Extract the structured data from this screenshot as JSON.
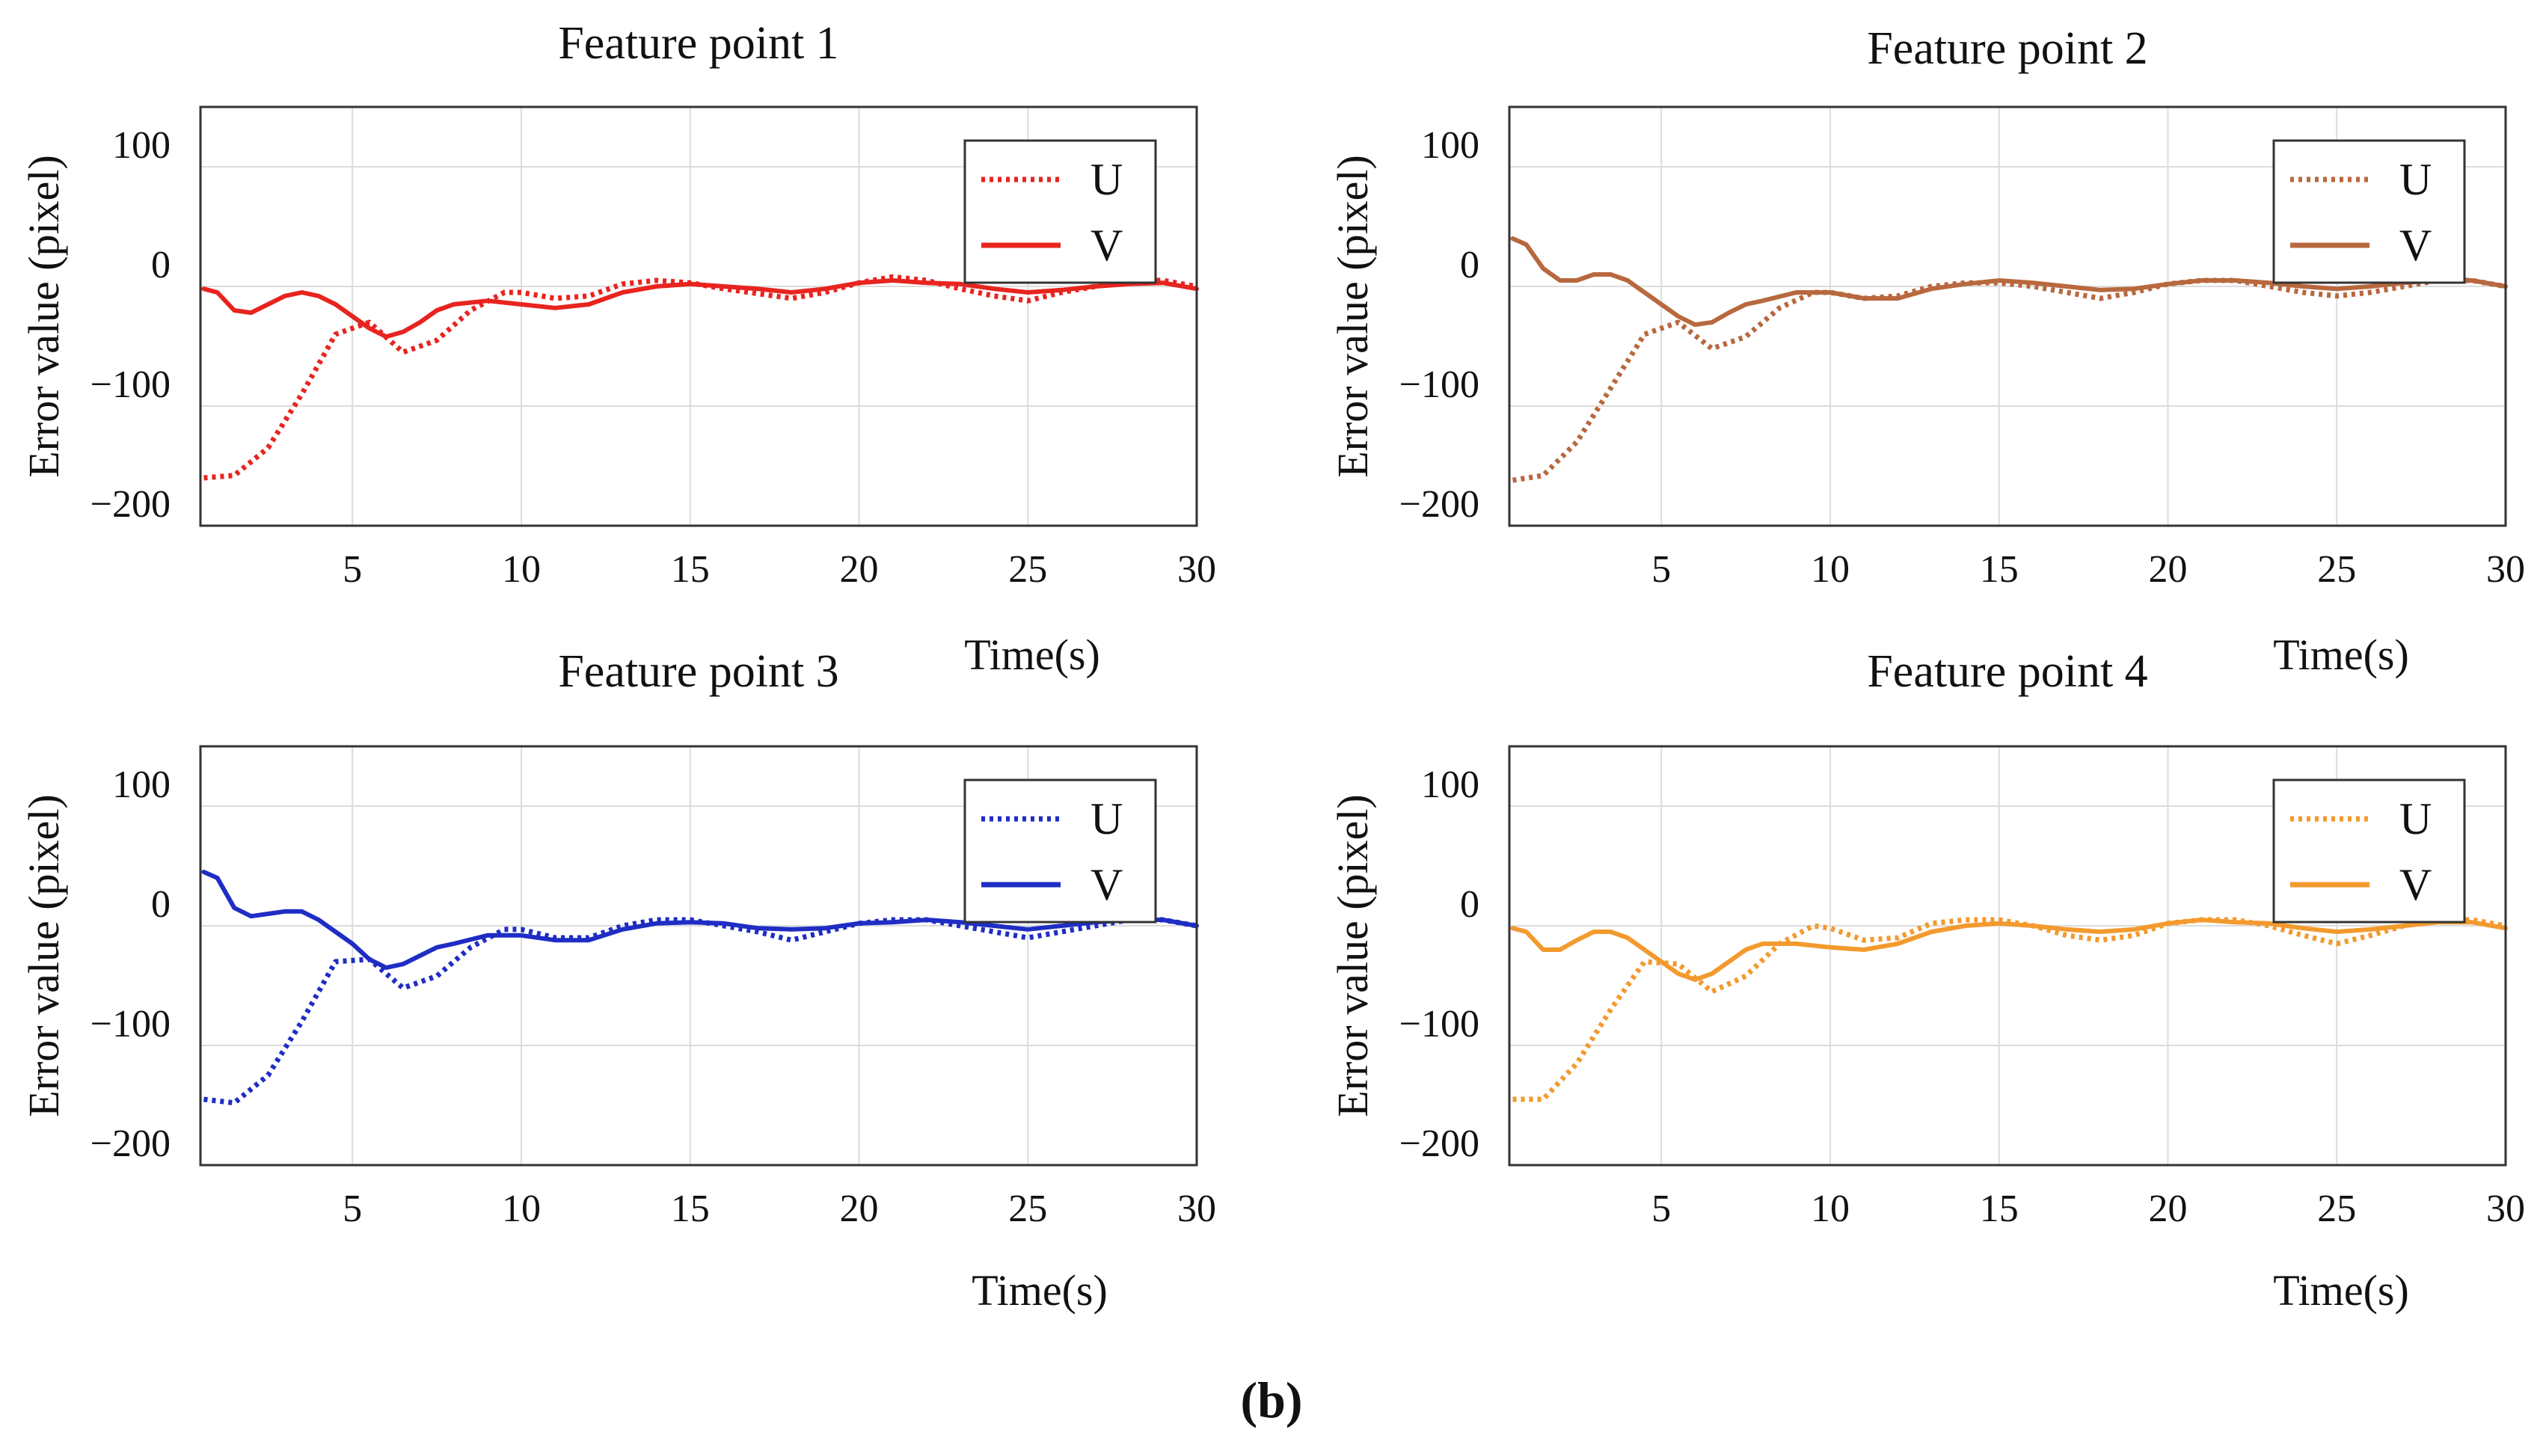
{
  "figure": {
    "caption": "(b)"
  },
  "chart_data": [
    {
      "type": "line",
      "title": "Feature point 1",
      "xlabel": "Time(s)",
      "ylabel": "Error value (pixel)",
      "xlim": [
        0.5,
        30
      ],
      "ylim": [
        -200,
        150
      ],
      "xticks": [
        5,
        10,
        15,
        20,
        25,
        30
      ],
      "yticks": [
        100,
        0,
        -100,
        -200
      ],
      "ytick_labels": [
        "100",
        "0",
        "−100",
        "−200"
      ],
      "grid": true,
      "color": "#e8241f",
      "legend_position": "top-right",
      "series": [
        {
          "name": "U",
          "style": "dotted",
          "x": [
            0.6,
            1.5,
            2.5,
            3.5,
            4.5,
            5.5,
            6.5,
            7.5,
            8.5,
            9.5,
            10,
            11,
            12,
            13,
            14,
            15,
            16,
            17,
            18,
            19,
            20,
            21,
            22,
            23,
            24,
            25,
            26,
            27,
            28,
            29,
            30
          ],
          "y": [
            -160,
            -158,
            -135,
            -90,
            -40,
            -30,
            -55,
            -45,
            -20,
            -5,
            -5,
            -10,
            -8,
            2,
            5,
            3,
            -2,
            -6,
            -10,
            -5,
            3,
            8,
            5,
            -2,
            -8,
            -12,
            -5,
            0,
            5,
            5,
            0
          ]
        },
        {
          "name": "V",
          "style": "solid",
          "x": [
            0.6,
            1,
            1.5,
            2,
            2.5,
            3,
            3.5,
            4,
            4.5,
            5,
            5.5,
            6,
            6.5,
            7,
            7.5,
            8,
            9,
            10,
            11,
            12,
            13,
            14,
            15,
            16,
            17,
            18,
            19,
            20,
            21,
            22,
            23,
            24,
            25,
            26,
            27,
            28,
            29,
            30
          ],
          "y": [
            -2,
            -5,
            -20,
            -22,
            -15,
            -8,
            -5,
            -8,
            -15,
            -25,
            -35,
            -42,
            -38,
            -30,
            -20,
            -15,
            -12,
            -15,
            -18,
            -15,
            -5,
            0,
            2,
            0,
            -2,
            -5,
            -2,
            3,
            5,
            3,
            2,
            -2,
            -5,
            -3,
            0,
            2,
            3,
            -2
          ]
        }
      ]
    },
    {
      "type": "line",
      "title": "Feature point 2",
      "xlabel": "Time(s)",
      "ylabel": "Error value (pixel)",
      "xlim": [
        0.5,
        30
      ],
      "ylim": [
        -200,
        150
      ],
      "xticks": [
        5,
        10,
        15,
        20,
        25,
        30
      ],
      "yticks": [
        100,
        0,
        -100,
        -200
      ],
      "ytick_labels": [
        "100",
        "0",
        "−100",
        "−200"
      ],
      "grid": true,
      "color": "#b8683e",
      "legend_position": "top-right",
      "series": [
        {
          "name": "U",
          "style": "dotted",
          "x": [
            0.6,
            1.5,
            2.5,
            3.5,
            4.5,
            5.5,
            6.5,
            7.5,
            8.5,
            9.5,
            10,
            11,
            12,
            13,
            14,
            15,
            16,
            17,
            18,
            19,
            20,
            21,
            22,
            23,
            24,
            25,
            26,
            27,
            28,
            29,
            30
          ],
          "y": [
            -162,
            -158,
            -130,
            -85,
            -40,
            -30,
            -52,
            -42,
            -18,
            -5,
            -5,
            -10,
            -8,
            0,
            3,
            3,
            0,
            -5,
            -10,
            -5,
            2,
            5,
            5,
            0,
            -5,
            -8,
            -5,
            0,
            5,
            5,
            0
          ]
        },
        {
          "name": "V",
          "style": "solid",
          "x": [
            0.6,
            1,
            1.5,
            2,
            2.5,
            3,
            3.5,
            4,
            4.5,
            5,
            5.5,
            6,
            6.5,
            7,
            7.5,
            8,
            9,
            10,
            11,
            12,
            13,
            14,
            15,
            16,
            17,
            18,
            19,
            20,
            21,
            22,
            23,
            24,
            25,
            26,
            27,
            28,
            29,
            30
          ],
          "y": [
            40,
            35,
            15,
            5,
            5,
            10,
            10,
            5,
            -5,
            -15,
            -25,
            -32,
            -30,
            -22,
            -15,
            -12,
            -5,
            -5,
            -10,
            -10,
            -2,
            2,
            5,
            3,
            0,
            -3,
            -2,
            2,
            5,
            5,
            3,
            0,
            -2,
            0,
            3,
            5,
            5,
            0
          ]
        }
      ]
    },
    {
      "type": "line",
      "title": "Feature point 3",
      "xlabel": "Time(s)",
      "ylabel": "Error value (pixel)",
      "xlim": [
        0.5,
        30
      ],
      "ylim": [
        -200,
        150
      ],
      "xticks": [
        5,
        10,
        15,
        20,
        25,
        30
      ],
      "yticks": [
        100,
        0,
        -100,
        -200
      ],
      "ytick_labels": [
        "100",
        "0",
        "−100",
        "−200"
      ],
      "grid": true,
      "color": "#1f2dc4",
      "legend_position": "top-right",
      "series": [
        {
          "name": "U",
          "style": "dotted",
          "x": [
            0.6,
            1.5,
            2.5,
            3.5,
            4.5,
            5.5,
            6.5,
            7.5,
            8.5,
            9.5,
            10,
            11,
            12,
            13,
            14,
            15,
            16,
            17,
            18,
            19,
            20,
            21,
            22,
            23,
            24,
            25,
            26,
            27,
            28,
            29,
            30
          ],
          "y": [
            -145,
            -148,
            -125,
            -80,
            -30,
            -28,
            -52,
            -42,
            -18,
            -3,
            -3,
            -10,
            -10,
            0,
            5,
            5,
            0,
            -5,
            -12,
            -5,
            2,
            5,
            5,
            0,
            -5,
            -10,
            -5,
            0,
            5,
            5,
            0
          ]
        },
        {
          "name": "V",
          "style": "solid",
          "x": [
            0.6,
            1,
            1.5,
            2,
            2.5,
            3,
            3.5,
            4,
            4.5,
            5,
            5.5,
            6,
            6.5,
            7,
            7.5,
            8,
            9,
            10,
            11,
            12,
            13,
            14,
            15,
            16,
            17,
            18,
            19,
            20,
            21,
            22,
            23,
            24,
            25,
            26,
            27,
            28,
            29,
            30
          ],
          "y": [
            45,
            40,
            15,
            8,
            10,
            12,
            12,
            5,
            -5,
            -15,
            -28,
            -35,
            -32,
            -25,
            -18,
            -15,
            -8,
            -8,
            -12,
            -12,
            -3,
            2,
            3,
            2,
            -2,
            -3,
            -2,
            2,
            3,
            5,
            3,
            0,
            -3,
            0,
            3,
            5,
            5,
            0
          ]
        }
      ]
    },
    {
      "type": "line",
      "title": "Feature point 4",
      "xlabel": "Time(s)",
      "ylabel": "Error value (pixel)",
      "xlim": [
        0.5,
        30
      ],
      "ylim": [
        -200,
        150
      ],
      "xticks": [
        5,
        10,
        15,
        20,
        25,
        30
      ],
      "yticks": [
        100,
        0,
        -100,
        -200
      ],
      "ytick_labels": [
        "100",
        "0",
        "−100",
        "−200"
      ],
      "grid": true,
      "color": "#f39a2e",
      "legend_position": "top-right",
      "series": [
        {
          "name": "U",
          "style": "dotted",
          "x": [
            0.6,
            1.5,
            2.5,
            3.5,
            4.5,
            5.5,
            6.5,
            7.5,
            8.5,
            9.5,
            10,
            11,
            12,
            13,
            14,
            15,
            16,
            17,
            18,
            19,
            20,
            21,
            22,
            23,
            24,
            25,
            26,
            27,
            28,
            29,
            30
          ],
          "y": [
            -145,
            -145,
            -115,
            -70,
            -30,
            -32,
            -55,
            -42,
            -15,
            0,
            -2,
            -12,
            -10,
            2,
            5,
            5,
            0,
            -8,
            -12,
            -8,
            2,
            5,
            5,
            0,
            -8,
            -15,
            -8,
            0,
            5,
            5,
            0
          ]
        },
        {
          "name": "V",
          "style": "solid",
          "x": [
            0.6,
            1,
            1.5,
            2,
            2.5,
            3,
            3.5,
            4,
            4.5,
            5,
            5.5,
            6,
            6.5,
            7,
            7.5,
            8,
            9,
            10,
            11,
            12,
            13,
            14,
            15,
            16,
            17,
            18,
            19,
            20,
            21,
            22,
            23,
            24,
            25,
            26,
            27,
            28,
            29,
            30
          ],
          "y": [
            -2,
            -5,
            -20,
            -20,
            -12,
            -5,
            -5,
            -10,
            -20,
            -30,
            -40,
            -45,
            -40,
            -30,
            -20,
            -15,
            -15,
            -18,
            -20,
            -15,
            -5,
            0,
            2,
            0,
            -3,
            -5,
            -3,
            2,
            5,
            3,
            2,
            -2,
            -5,
            -3,
            0,
            3,
            3,
            -2
          ]
        }
      ]
    }
  ]
}
